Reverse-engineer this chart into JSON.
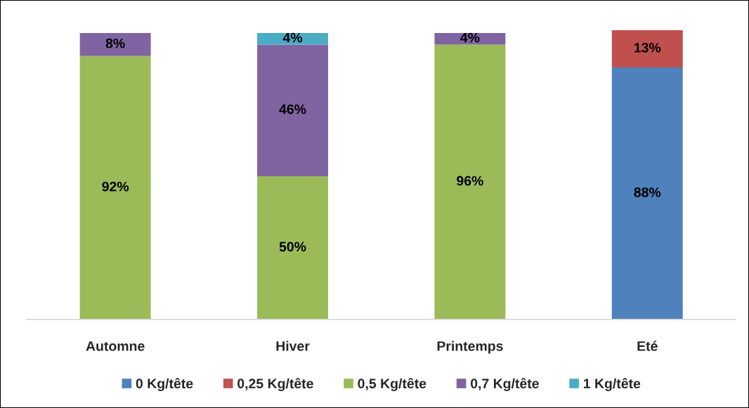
{
  "chart_data": {
    "type": "bar",
    "stacked": true,
    "categories": [
      "Automne",
      "Hiver",
      "Printemps",
      "Eté"
    ],
    "series": [
      {
        "name": "0 Kg/tête",
        "color": "#4f81bd",
        "values": [
          null,
          null,
          null,
          88
        ],
        "value_labels": [
          null,
          null,
          null,
          "88%"
        ]
      },
      {
        "name": "0,25 Kg/tête",
        "color": "#c0504d",
        "values": [
          null,
          null,
          null,
          13
        ],
        "value_labels": [
          null,
          null,
          null,
          "13%"
        ]
      },
      {
        "name": "0,5 Kg/tête",
        "color": "#9bbb59",
        "values": [
          92,
          50,
          96,
          null
        ],
        "value_labels": [
          "92%",
          "50%",
          "96%",
          null
        ]
      },
      {
        "name": "0,7 Kg/tête",
        "color": "#8064a2",
        "values": [
          8,
          46,
          4,
          null
        ],
        "value_labels": [
          "8%",
          "46%",
          "4%",
          null
        ]
      },
      {
        "name": "1 Kg/tête",
        "color": "#4bacc6",
        "values": [
          null,
          4,
          null,
          null
        ],
        "value_labels": [
          null,
          "4%",
          null,
          null
        ]
      }
    ],
    "legend": "bottom",
    "grid": false,
    "tick_labels": "x"
  }
}
